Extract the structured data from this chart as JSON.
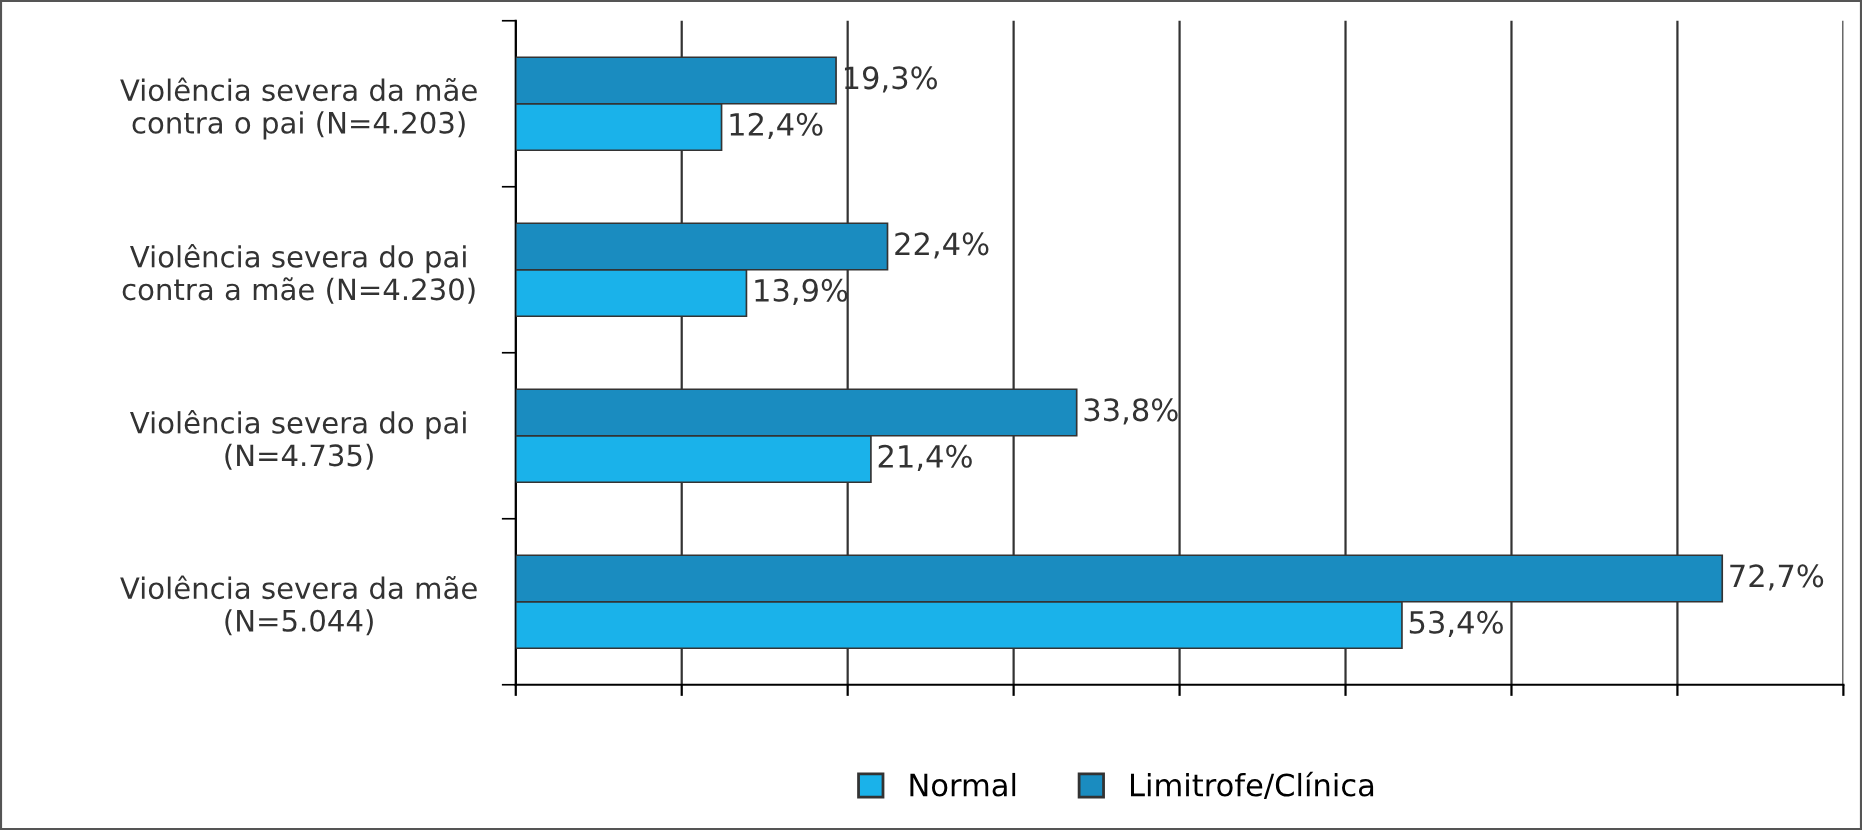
{
  "chart_data": {
    "type": "bar",
    "orientation": "horizontal",
    "categories": [
      "Violência severa da mãe\ncontra o pai (N=4.203)",
      "Violência severa do pai\ncontra a mãe (N=4.230)",
      "Violência severa do pai\n(N=4.735)",
      "Violência severa da mãe\n(N=5.044)"
    ],
    "series": [
      {
        "name": "Normal",
        "color": "#1ab2ea",
        "values": [
          12.4,
          13.9,
          21.4,
          53.4
        ],
        "value_labels": [
          "12,4%",
          "13,9%",
          "21,4%",
          "53,4%"
        ]
      },
      {
        "name": "Limitrofe/Clínica",
        "color": "#1a8cc0",
        "values": [
          19.3,
          22.4,
          33.8,
          72.7
        ],
        "value_labels": [
          "19,3%",
          "22,4%",
          "33,8%",
          "72,7%"
        ]
      }
    ],
    "xlim": [
      0,
      80
    ],
    "xticks": [
      {
        "value": 0,
        "label": null
      },
      {
        "value": 10,
        "label": null
      },
      {
        "value": 20,
        "label": null
      },
      {
        "value": 30,
        "label": null
      },
      {
        "value": 40,
        "label": null
      },
      {
        "value": 50,
        "label": null
      },
      {
        "value": 60,
        "label": null
      },
      {
        "value": 70,
        "label": null
      },
      {
        "value": 80,
        "label": null
      }
    ],
    "tick_labels": "y",
    "grid": "x",
    "legend": "bottom"
  }
}
